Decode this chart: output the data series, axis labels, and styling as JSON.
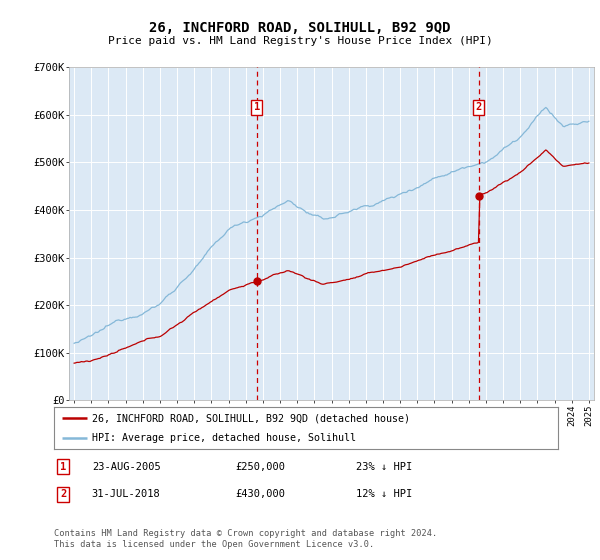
{
  "title": "26, INCHFORD ROAD, SOLIHULL, B92 9QD",
  "subtitle": "Price paid vs. HM Land Registry's House Price Index (HPI)",
  "background_color": "#dce9f5",
  "plot_bg_color": "#dce9f5",
  "ylim": [
    0,
    700000
  ],
  "yticks": [
    0,
    100000,
    200000,
    300000,
    400000,
    500000,
    600000,
    700000
  ],
  "ytick_labels": [
    "£0",
    "£100K",
    "£200K",
    "£300K",
    "£400K",
    "£500K",
    "£600K",
    "£700K"
  ],
  "hpi_color": "#85b8d8",
  "price_color": "#bb0000",
  "sale1_date_num": 2005.644,
  "sale1_price": 250000,
  "sale2_date_num": 2018.583,
  "sale2_price": 430000,
  "legend_line1": "26, INCHFORD ROAD, SOLIHULL, B92 9QD (detached house)",
  "legend_line2": "HPI: Average price, detached house, Solihull",
  "footer": "Contains HM Land Registry data © Crown copyright and database right 2024.\nThis data is licensed under the Open Government Licence v3.0.",
  "xmin": 1994.7,
  "xmax": 2025.3
}
